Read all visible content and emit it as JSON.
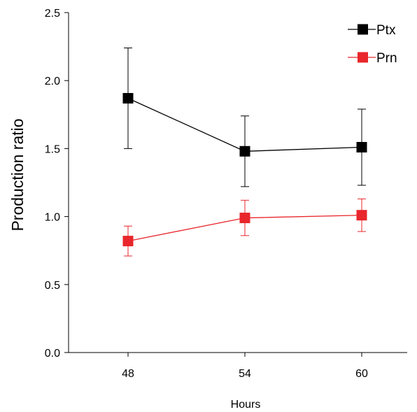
{
  "chart_data": {
    "type": "line",
    "title": "",
    "xlabel": "Hours",
    "ylabel": "Production ratio",
    "categories": [
      "48",
      "54",
      "60"
    ],
    "ylim": [
      0.0,
      2.5
    ],
    "yticks": [
      "0.0",
      "0.5",
      "1.0",
      "1.5",
      "2.0",
      "2.5"
    ],
    "grid": false,
    "legend_position": "top-right",
    "series": [
      {
        "name": "Ptx",
        "color": "#000000",
        "marker": "square",
        "values": [
          1.87,
          1.48,
          1.51
        ],
        "error": [
          0.37,
          0.26,
          0.28
        ]
      },
      {
        "name": "Prn",
        "color": "#e8262b",
        "marker": "square",
        "values": [
          0.82,
          0.99,
          1.01
        ],
        "error": [
          0.11,
          0.13,
          0.12
        ]
      }
    ]
  }
}
